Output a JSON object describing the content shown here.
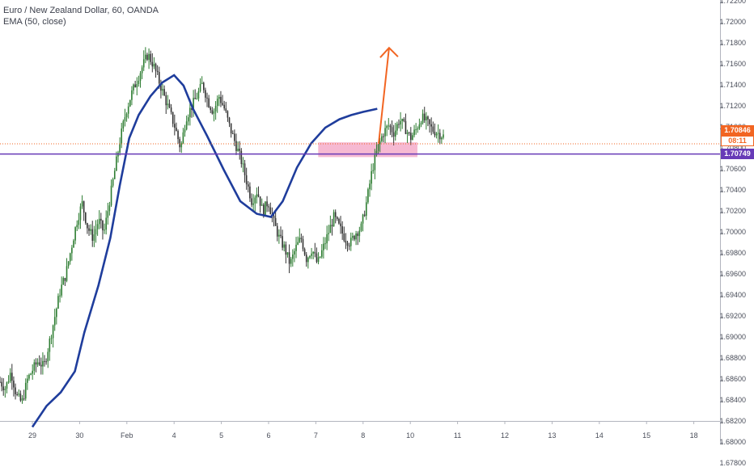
{
  "legend": {
    "symbol_line": "Euro / New Zealand Dollar, 60, OANDA",
    "indicator_line": "EMA (50, close)"
  },
  "price_axis": {
    "ticks": [
      "1.72200",
      "1.72000",
      "1.71800",
      "1.71600",
      "1.71400",
      "1.71200",
      "1.71000",
      "1.70800",
      "1.70600",
      "1.70400",
      "1.70200",
      "1.70000",
      "1.69800",
      "1.69600",
      "1.69400",
      "1.69200",
      "1.69000",
      "1.68800",
      "1.68600",
      "1.68400",
      "1.68200",
      "1.68000",
      "1.67800"
    ],
    "last_price": "1.70846",
    "countdown": "08:11",
    "support_price": "1.70749"
  },
  "time_axis": {
    "ticks": [
      "29",
      "30",
      "Feb",
      "4",
      "5",
      "6",
      "7",
      "8",
      "10",
      "11",
      "12",
      "13",
      "14",
      "15",
      "18"
    ]
  },
  "colors": {
    "bull": "#2e7d32",
    "bear": "#333333",
    "ema": "#1f3d9c",
    "support": "#673ab7",
    "zone": "#f4a7c7",
    "arrow": "#f26522",
    "last_price": "#f26522"
  },
  "chart_data": {
    "type": "candlestick",
    "title": "Euro / New Zealand Dollar, 60, OANDA",
    "xlabel": "",
    "ylabel": "",
    "ylim": [
      1.6775,
      1.7225
    ],
    "x_categories": [
      "29",
      "30",
      "Feb",
      "4",
      "5",
      "6",
      "7",
      "8",
      "10",
      "11",
      "12",
      "13",
      "14",
      "15",
      "18"
    ],
    "series": [
      {
        "name": "EMA (50, close)",
        "type": "line",
        "points": [
          [
            0,
            1.6815
          ],
          [
            0.3,
            1.6835
          ],
          [
            0.6,
            1.6848
          ],
          [
            0.9,
            1.6868
          ],
          [
            1.1,
            1.6905
          ],
          [
            1.4,
            1.695
          ],
          [
            1.65,
            1.6995
          ],
          [
            1.85,
            1.7045
          ],
          [
            2.05,
            1.709
          ],
          [
            2.25,
            1.7112
          ],
          [
            2.5,
            1.713
          ],
          [
            2.75,
            1.7143
          ],
          [
            3.0,
            1.715
          ],
          [
            3.2,
            1.714
          ],
          [
            3.4,
            1.7118
          ],
          [
            3.7,
            1.7092
          ],
          [
            4.05,
            1.706
          ],
          [
            4.4,
            1.703
          ],
          [
            4.75,
            1.7018
          ],
          [
            5.05,
            1.7015
          ],
          [
            5.3,
            1.703
          ],
          [
            5.6,
            1.7062
          ],
          [
            5.9,
            1.7085
          ],
          [
            6.2,
            1.71
          ],
          [
            6.5,
            1.7108
          ],
          [
            6.75,
            1.7112
          ],
          [
            7.0,
            1.7115
          ],
          [
            7.3,
            1.7118
          ]
        ]
      }
    ],
    "ohlc_path": [
      1.6858,
      1.6852,
      1.6868,
      1.6845,
      1.6838,
      1.686,
      1.687,
      1.6878,
      1.6872,
      1.6895,
      1.692,
      1.6945,
      1.696,
      1.6985,
      1.701,
      1.7028,
      1.7005,
      1.6995,
      1.7012,
      1.7,
      1.703,
      1.706,
      1.709,
      1.7115,
      1.7132,
      1.7145,
      1.7158,
      1.717,
      1.716,
      1.7145,
      1.713,
      1.7115,
      1.71,
      1.708,
      1.711,
      1.712,
      1.713,
      1.7142,
      1.7125,
      1.7115,
      1.713,
      1.7118,
      1.71,
      1.7085,
      1.707,
      1.705,
      1.703,
      1.704,
      1.702,
      1.703,
      1.701,
      1.6995,
      1.6985,
      1.697,
      1.6985,
      1.6995,
      1.6975,
      1.6985,
      1.697,
      1.6985,
      1.7,
      1.7015,
      1.7005,
      1.6995,
      1.699,
      1.7,
      1.7005,
      1.703,
      1.706,
      1.708,
      1.7095,
      1.7102,
      1.7095,
      1.7108,
      1.71,
      1.709,
      1.7098,
      1.711,
      1.7105,
      1.7098,
      1.7095,
      1.7092
    ],
    "horizontal_lines": [
      {
        "label": "1.70846",
        "value": 1.70846,
        "style": "dotted"
      },
      {
        "label": "1.70749",
        "value": 1.70749,
        "style": "solid"
      }
    ],
    "zone": {
      "from_x": 6.05,
      "to_x": 8.15,
      "low": 1.7072,
      "high": 1.7086
    },
    "arrow": {
      "from": [
        7.33,
        1.7085
      ],
      "to": [
        7.55,
        1.7176
      ]
    },
    "grid": false,
    "legend_position": "top-left"
  }
}
